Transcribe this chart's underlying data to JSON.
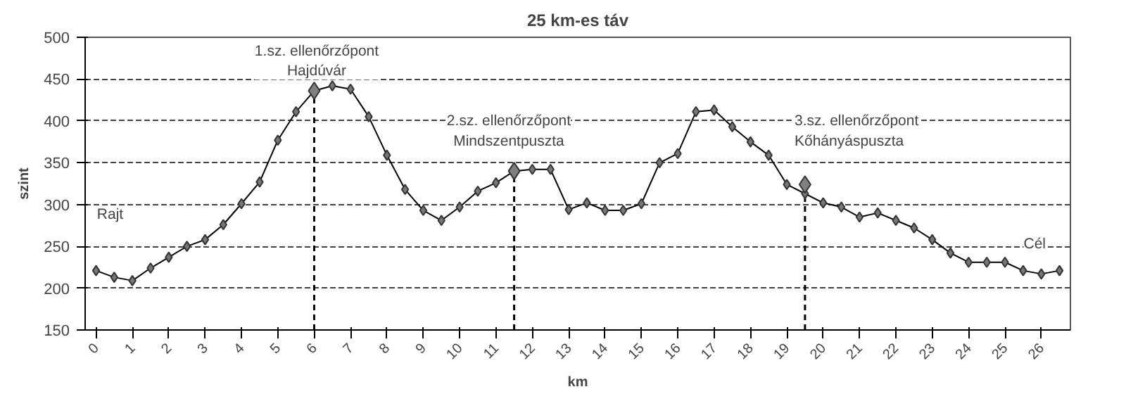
{
  "chart_data": {
    "type": "line",
    "title": "25 km-es táv",
    "xlabel": "km",
    "ylabel": "szint",
    "x": [
      0,
      0.5,
      1,
      1.5,
      2,
      2.5,
      3,
      3.5,
      4,
      4.5,
      5,
      5.5,
      6,
      6.5,
      7,
      7.5,
      8,
      8.5,
      9,
      9.5,
      10,
      10.5,
      11,
      11.5,
      12,
      12.5,
      13,
      13.5,
      14,
      14.5,
      15,
      15.5,
      16,
      16.5,
      17,
      17.5,
      18,
      18.5,
      19,
      19.5,
      20,
      20.5,
      21,
      21.5,
      22,
      22.5,
      23,
      23.5,
      24,
      24.5,
      25,
      25.5,
      26,
      26.5
    ],
    "series": [
      {
        "color": "#000000",
        "marker": "diamond",
        "values": [
          221,
          213,
          209,
          224,
          237,
          250,
          258,
          276,
          301,
          327,
          377,
          411,
          436,
          442,
          438,
          405,
          359,
          318,
          293,
          281,
          297,
          316,
          326,
          340,
          342,
          342,
          294,
          302,
          293,
          293,
          301,
          350,
          361,
          411,
          413,
          393,
          375,
          359,
          324,
          313,
          302,
          297,
          285,
          290,
          281,
          272,
          258,
          242,
          231,
          231,
          231,
          221,
          217,
          221
        ]
      },
      {
        "type": "scatter",
        "color": "#808080",
        "marker": "diamond",
        "x": [
          6,
          11.5,
          19.5
        ],
        "values": [
          436,
          340,
          324
        ]
      }
    ],
    "ref_lines": [
      {
        "axis": "x",
        "value": 6,
        "line_style": "dashed"
      },
      {
        "axis": "x",
        "value": 11.5,
        "line_style": "dashed"
      },
      {
        "axis": "x",
        "value": 19.5,
        "line_style": "dashed"
      }
    ],
    "annotations": [
      "1.sz. ellenőrzőpont\nHajdúvár",
      "2.sz. ellenőrzőpont\nMindszentpuszta",
      "3.sz. ellenőrzőpont\nKőhányáspuszta",
      "Rajt",
      "Cél"
    ],
    "xlim": [
      -0.3,
      26.8
    ],
    "xticks": [
      0,
      1,
      2,
      3,
      4,
      5,
      6,
      7,
      8,
      9,
      10,
      11,
      12,
      13,
      14,
      15,
      16,
      17,
      18,
      19,
      20,
      21,
      22,
      23,
      24,
      25,
      26
    ],
    "ylim": [
      150,
      500
    ],
    "yticks": [
      150,
      200,
      250,
      300,
      350,
      400,
      450,
      500
    ],
    "grid": "y"
  }
}
